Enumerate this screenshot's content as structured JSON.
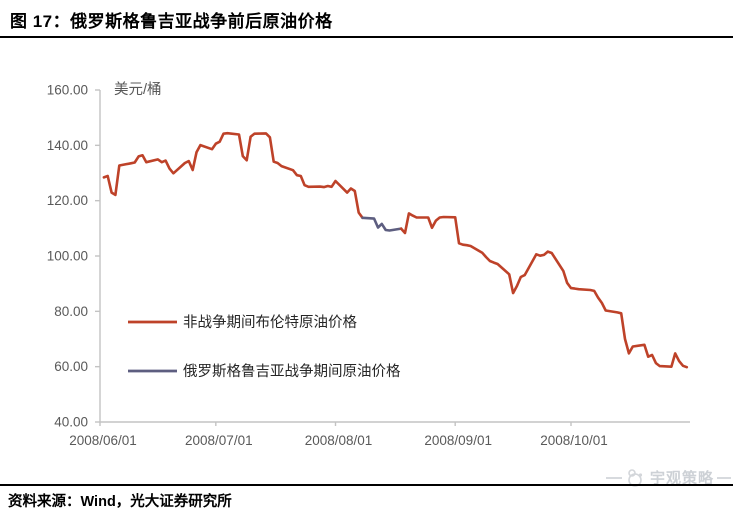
{
  "figure": {
    "title": "图 17：俄罗斯格鲁吉亚战争前后原油价格",
    "source": "资料来源：Wind，光大证券研究所",
    "watermark": "宇观策略"
  },
  "colors": {
    "non_war_line": "#BE4229",
    "war_line": "#5D5E80",
    "axis": "#C3C3C3",
    "tick_label": "#595959",
    "legend_text": "#262626",
    "watermark_gray": "#cdd1d6"
  },
  "chart_data": {
    "type": "line",
    "title": "图 17：俄罗斯格鲁吉亚战争前后原油价格",
    "unit_label": "美元/桶",
    "xlabel": "",
    "ylabel": "美元/桶",
    "ylim": [
      40,
      160
    ],
    "y_ticks": [
      "160.00",
      "140.00",
      "120.00",
      "100.00",
      "80.00",
      "60.00",
      "40.00"
    ],
    "x_ticks": [
      "2008/06/01",
      "2008/07/01",
      "2008/08/01",
      "2008/09/01",
      "2008/10/01"
    ],
    "grid": false,
    "legend_position": "inside-left",
    "legend": [
      {
        "label": "非战争期间布伦特原油价格",
        "color_key": "non_war_line"
      },
      {
        "label": "俄罗斯格鲁吉亚战争期间原油价格",
        "color_key": "war_line"
      }
    ],
    "segments": [
      {
        "legend": 0,
        "points": [
          [
            "2008/06/02",
            128.4
          ],
          [
            "2008/06/03",
            128.9
          ],
          [
            "2008/06/04",
            122.9
          ],
          [
            "2008/06/05",
            122.1
          ],
          [
            "2008/06/06",
            132.7
          ],
          [
            "2008/06/09",
            133.5
          ],
          [
            "2008/06/10",
            133.8
          ],
          [
            "2008/06/11",
            136.0
          ],
          [
            "2008/06/12",
            136.4
          ],
          [
            "2008/06/13",
            133.9
          ],
          [
            "2008/06/16",
            134.9
          ],
          [
            "2008/06/17",
            133.9
          ],
          [
            "2008/06/18",
            134.5
          ],
          [
            "2008/06/19",
            131.6
          ],
          [
            "2008/06/20",
            129.9
          ],
          [
            "2008/06/23",
            133.6
          ],
          [
            "2008/06/24",
            134.3
          ],
          [
            "2008/06/25",
            131.1
          ],
          [
            "2008/06/26",
            137.5
          ],
          [
            "2008/06/27",
            140.1
          ],
          [
            "2008/06/30",
            138.6
          ],
          [
            "2008/07/01",
            140.6
          ],
          [
            "2008/07/02",
            141.3
          ],
          [
            "2008/07/03",
            144.2
          ],
          [
            "2008/07/04",
            144.4
          ],
          [
            "2008/07/07",
            143.9
          ],
          [
            "2008/07/08",
            136.1
          ],
          [
            "2008/07/09",
            134.6
          ],
          [
            "2008/07/10",
            143.1
          ],
          [
            "2008/07/11",
            144.2
          ],
          [
            "2008/07/14",
            144.3
          ],
          [
            "2008/07/15",
            142.9
          ],
          [
            "2008/07/16",
            134.1
          ],
          [
            "2008/07/17",
            133.6
          ],
          [
            "2008/07/18",
            132.5
          ],
          [
            "2008/07/21",
            131.0
          ],
          [
            "2008/07/22",
            129.2
          ],
          [
            "2008/07/23",
            128.9
          ],
          [
            "2008/07/24",
            125.6
          ],
          [
            "2008/07/25",
            125.0
          ],
          [
            "2008/07/28",
            125.1
          ],
          [
            "2008/07/29",
            124.9
          ],
          [
            "2008/07/30",
            125.3
          ],
          [
            "2008/07/31",
            125.0
          ],
          [
            "2008/08/01",
            127.1
          ],
          [
            "2008/08/04",
            122.9
          ],
          [
            "2008/08/05",
            124.4
          ],
          [
            "2008/08/06",
            123.5
          ],
          [
            "2008/08/07",
            115.7
          ],
          [
            "2008/08/08",
            113.8
          ]
        ]
      },
      {
        "legend": 1,
        "points": [
          [
            "2008/08/08",
            113.8
          ],
          [
            "2008/08/11",
            113.5
          ],
          [
            "2008/08/12",
            110.3
          ],
          [
            "2008/08/13",
            111.6
          ],
          [
            "2008/08/14",
            109.4
          ],
          [
            "2008/08/15",
            109.2
          ],
          [
            "2008/08/18",
            109.9
          ]
        ]
      },
      {
        "legend": 0,
        "points": [
          [
            "2008/08/18",
            109.9
          ],
          [
            "2008/08/19",
            108.3
          ],
          [
            "2008/08/20",
            115.4
          ],
          [
            "2008/08/21",
            114.6
          ],
          [
            "2008/08/22",
            113.9
          ],
          [
            "2008/08/25",
            113.9
          ],
          [
            "2008/08/26",
            110.2
          ],
          [
            "2008/08/27",
            112.8
          ],
          [
            "2008/08/28",
            113.9
          ],
          [
            "2008/08/29",
            114.1
          ],
          [
            "2008/09/01",
            114.0
          ],
          [
            "2008/09/02",
            104.6
          ],
          [
            "2008/09/03",
            104.1
          ],
          [
            "2008/09/04",
            103.9
          ],
          [
            "2008/09/05",
            103.6
          ],
          [
            "2008/09/08",
            101.2
          ],
          [
            "2008/09/09",
            99.6
          ],
          [
            "2008/09/10",
            98.2
          ],
          [
            "2008/09/11",
            97.6
          ],
          [
            "2008/09/12",
            97.1
          ],
          [
            "2008/09/15",
            93.4
          ],
          [
            "2008/09/16",
            86.6
          ],
          [
            "2008/09/17",
            89.2
          ],
          [
            "2008/09/18",
            92.4
          ],
          [
            "2008/09/19",
            93.1
          ],
          [
            "2008/09/22",
            100.6
          ],
          [
            "2008/09/23",
            100.1
          ],
          [
            "2008/09/24",
            100.4
          ],
          [
            "2008/09/25",
            101.6
          ],
          [
            "2008/09/26",
            101.1
          ],
          [
            "2008/09/29",
            94.6
          ],
          [
            "2008/09/30",
            90.3
          ],
          [
            "2008/10/01",
            88.4
          ],
          [
            "2008/10/02",
            88.2
          ],
          [
            "2008/10/03",
            88.0
          ],
          [
            "2008/10/06",
            87.7
          ],
          [
            "2008/10/07",
            87.4
          ],
          [
            "2008/10/08",
            85.0
          ],
          [
            "2008/10/09",
            83.0
          ],
          [
            "2008/10/10",
            80.3
          ],
          [
            "2008/10/13",
            79.6
          ],
          [
            "2008/10/14",
            79.3
          ],
          [
            "2008/10/15",
            70.0
          ],
          [
            "2008/10/16",
            64.8
          ],
          [
            "2008/10/17",
            67.3
          ],
          [
            "2008/10/20",
            67.9
          ],
          [
            "2008/10/21",
            63.6
          ],
          [
            "2008/10/22",
            64.2
          ],
          [
            "2008/10/23",
            61.3
          ],
          [
            "2008/10/24",
            60.2
          ],
          [
            "2008/10/27",
            60.0
          ],
          [
            "2008/10/28",
            64.8
          ],
          [
            "2008/10/29",
            62.0
          ],
          [
            "2008/10/30",
            60.3
          ],
          [
            "2008/10/31",
            59.8
          ]
        ]
      }
    ]
  }
}
